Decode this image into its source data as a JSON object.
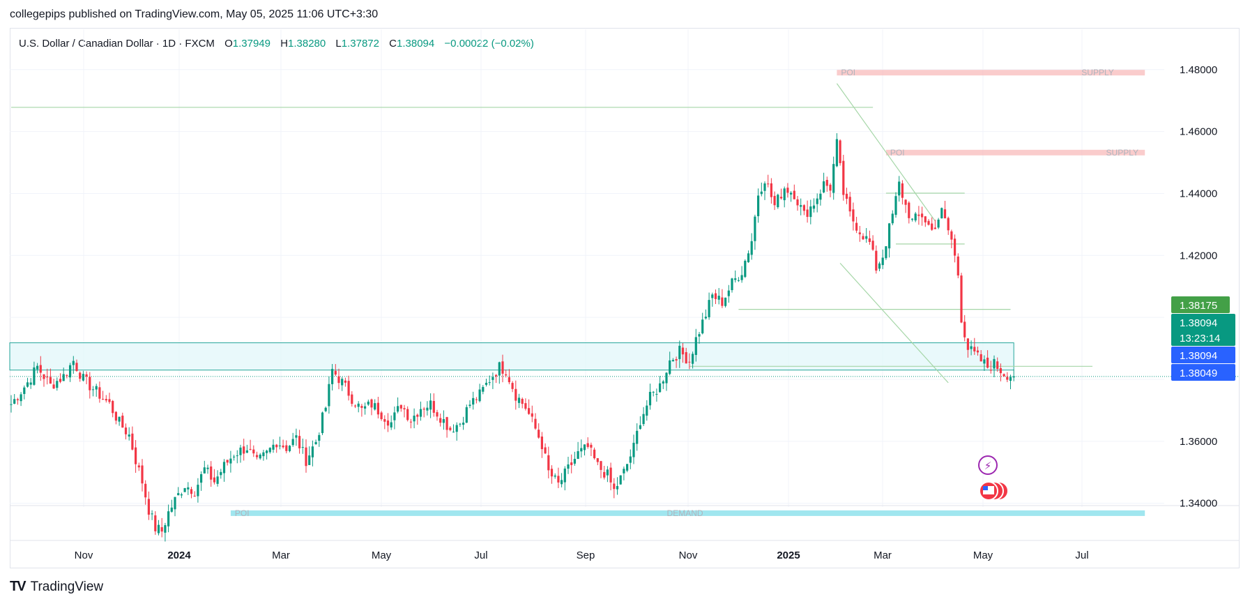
{
  "header": {
    "attribution": "collegepips published on TradingView.com, May 05, 2025 11:06 UTC+3:30"
  },
  "legend": {
    "symbol": "U.S. Dollar / Canadian Dollar · 1D · FXCM",
    "open_label": "O",
    "open": "1.37949",
    "high_label": "H",
    "high": "1.38280",
    "low_label": "L",
    "low": "1.37872",
    "close_label": "C",
    "close": "1.38094",
    "change": "−0.00022 (−0.02%)"
  },
  "chart_data": {
    "type": "candlestick",
    "x_ticks": [
      "Nov",
      "2024",
      "Mar",
      "May",
      "Jul",
      "Sep",
      "Nov",
      "2025",
      "Mar",
      "May",
      "Jul"
    ],
    "bold_x_ticks": [
      "2024",
      "2025"
    ],
    "y_ticks": [
      "1.48000",
      "1.46000",
      "1.44000",
      "1.42000",
      "1.36000",
      "1.34000"
    ],
    "ylim": [
      1.328,
      1.493
    ],
    "price_badges": [
      {
        "label": "1.38175",
        "value": 1.38175,
        "color": "#43a047"
      },
      {
        "label": "1.38094",
        "value": 1.38094,
        "color": "#089981",
        "sub": "13:23:14"
      },
      {
        "label": "1.38094",
        "value": 1.38094,
        "color": "#2962ff"
      },
      {
        "label": "1.38049",
        "value": 1.38049,
        "color": "#2962ff"
      }
    ],
    "price_path": [
      [
        0,
        1.372
      ],
      [
        5,
        1.379
      ],
      [
        8,
        1.384
      ],
      [
        12,
        1.378
      ],
      [
        16,
        1.381
      ],
      [
        19,
        1.386
      ],
      [
        22,
        1.38
      ],
      [
        26,
        1.376
      ],
      [
        30,
        1.372
      ],
      [
        33,
        1.366
      ],
      [
        36,
        1.362
      ],
      [
        38,
        1.354
      ],
      [
        40,
        1.347
      ],
      [
        42,
        1.338
      ],
      [
        44,
        1.332
      ],
      [
        46,
        1.331
      ],
      [
        48,
        1.337
      ],
      [
        50,
        1.341
      ],
      [
        53,
        1.346
      ],
      [
        56,
        1.344
      ],
      [
        59,
        1.351
      ],
      [
        62,
        1.347
      ],
      [
        65,
        1.352
      ],
      [
        68,
        1.356
      ],
      [
        72,
        1.358
      ],
      [
        75,
        1.353
      ],
      [
        78,
        1.356
      ],
      [
        81,
        1.36
      ],
      [
        84,
        1.358
      ],
      [
        87,
        1.361
      ],
      [
        90,
        1.354
      ],
      [
        93,
        1.36
      ],
      [
        96,
        1.371
      ],
      [
        98,
        1.383
      ],
      [
        101,
        1.379
      ],
      [
        104,
        1.374
      ],
      [
        107,
        1.37
      ],
      [
        110,
        1.372
      ],
      [
        113,
        1.369
      ],
      [
        116,
        1.366
      ],
      [
        119,
        1.372
      ],
      [
        122,
        1.367
      ],
      [
        125,
        1.371
      ],
      [
        128,
        1.372
      ],
      [
        131,
        1.368
      ],
      [
        134,
        1.364
      ],
      [
        137,
        1.366
      ],
      [
        140,
        1.372
      ],
      [
        143,
        1.375
      ],
      [
        146,
        1.38
      ],
      [
        149,
        1.384
      ],
      [
        151,
        1.383
      ],
      [
        154,
        1.375
      ],
      [
        157,
        1.371
      ],
      [
        160,
        1.364
      ],
      [
        162,
        1.359
      ],
      [
        164,
        1.35
      ],
      [
        167,
        1.346
      ],
      [
        170,
        1.351
      ],
      [
        173,
        1.356
      ],
      [
        176,
        1.358
      ],
      [
        179,
        1.352
      ],
      [
        182,
        1.349
      ],
      [
        184,
        1.344
      ],
      [
        187,
        1.35
      ],
      [
        190,
        1.358
      ],
      [
        192,
        1.367
      ],
      [
        195,
        1.374
      ],
      [
        198,
        1.378
      ],
      [
        201,
        1.386
      ],
      [
        204,
        1.389
      ],
      [
        207,
        1.386
      ],
      [
        209,
        1.393
      ],
      [
        212,
        1.401
      ],
      [
        214,
        1.407
      ],
      [
        217,
        1.405
      ],
      [
        220,
        1.411
      ],
      [
        223,
        1.415
      ],
      [
        226,
        1.425
      ],
      [
        228,
        1.44
      ],
      [
        230,
        1.445
      ],
      [
        233,
        1.436
      ],
      [
        236,
        1.442
      ],
      [
        239,
        1.44
      ],
      [
        242,
        1.433
      ],
      [
        245,
        1.437
      ],
      [
        248,
        1.443
      ],
      [
        250,
        1.442
      ],
      [
        252,
        1.456
      ],
      [
        254,
        1.44
      ],
      [
        256,
        1.433
      ],
      [
        259,
        1.428
      ],
      [
        262,
        1.424
      ],
      [
        264,
        1.416
      ],
      [
        266,
        1.42
      ],
      [
        269,
        1.433
      ],
      [
        271,
        1.443
      ],
      [
        273,
        1.436
      ],
      [
        275,
        1.431
      ],
      [
        278,
        1.433
      ],
      [
        281,
        1.428
      ],
      [
        284,
        1.434
      ],
      [
        287,
        1.425
      ],
      [
        289,
        1.414
      ],
      [
        290,
        1.4
      ],
      [
        292,
        1.39
      ],
      [
        295,
        1.387
      ],
      [
        298,
        1.384
      ],
      [
        300,
        1.385
      ],
      [
        303,
        1.382
      ],
      [
        306,
        1.381
      ]
    ],
    "h_lines": [
      {
        "y": 1.4678,
        "x1": 0,
        "x2": 263
      },
      {
        "y": 1.4401,
        "x1": 267,
        "x2": 291
      },
      {
        "y": 1.4237,
        "x1": 270,
        "x2": 291
      },
      {
        "y": 1.4026,
        "x1": 222,
        "x2": 305
      },
      {
        "y": 1.3842,
        "x1": 207,
        "x2": 330
      }
    ],
    "zones": [
      {
        "kind": "poi-band",
        "y_top": 1.3918,
        "y_bot": 1.383,
        "x1": 0,
        "x2": 306
      },
      {
        "kind": "supply",
        "y": 1.479,
        "x1": 252,
        "x2": 346,
        "left_label": "POI",
        "right_label": "SUPPLY"
      },
      {
        "kind": "supply",
        "y": 1.4532,
        "x1": 267,
        "x2": 346,
        "left_label": "POI",
        "right_label": "SUPPLY"
      },
      {
        "kind": "demand",
        "y": 1.3368,
        "x1": 67,
        "x2": 346,
        "left_label": "POI",
        "right_label": "DEMAND"
      }
    ],
    "channel": [
      {
        "x1": 252,
        "y1": 1.4755,
        "x2": 282,
        "y2": 1.4311
      },
      {
        "x1": 253,
        "y1": 1.4175,
        "x2": 286,
        "y2": 1.3789
      }
    ]
  },
  "colors": {
    "up": "#089981",
    "down": "#f23645",
    "grid": "#f0f3fa",
    "hline": "#a5d6a7",
    "poi_band": "#e0f7fa"
  },
  "footer": {
    "brand": "TradingView",
    "logo": "TV"
  }
}
